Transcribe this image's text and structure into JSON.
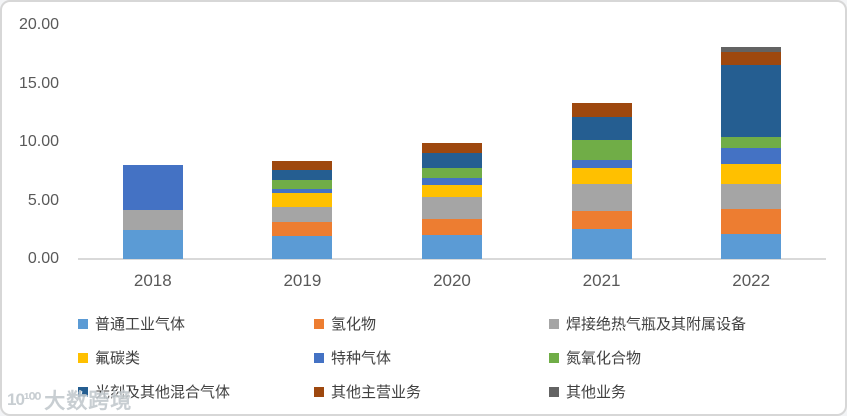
{
  "watermark": {
    "logo": "10¹⁰⁰",
    "text": "大数跨境"
  },
  "chart_data": {
    "type": "bar",
    "stacked": true,
    "title": "",
    "xlabel": "",
    "ylabel": "",
    "categories": [
      "2018",
      "2019",
      "2020",
      "2021",
      "2022"
    ],
    "series": [
      {
        "name": "普通工业气体",
        "color": "#5B9BD5",
        "values": [
          2.45,
          2.0,
          2.05,
          2.55,
          2.15
        ]
      },
      {
        "name": "氢化物",
        "color": "#ED7D31",
        "values": [
          0,
          1.2,
          1.4,
          1.55,
          2.1
        ]
      },
      {
        "name": "焊接绝热气瓶及其附属设备",
        "color": "#A5A5A5",
        "values": [
          1.7,
          1.25,
          1.85,
          2.3,
          2.15
        ]
      },
      {
        "name": "氟碳类",
        "color": "#FFC000",
        "values": [
          0,
          1.15,
          1.0,
          1.4,
          1.7
        ]
      },
      {
        "name": "特种气体",
        "color": "#4472C4",
        "values": [
          3.9,
          0.4,
          0.6,
          0.65,
          1.35
        ]
      },
      {
        "name": "氮氧化合物",
        "color": "#70AD47",
        "values": [
          0,
          0.75,
          0.9,
          1.75,
          1.0
        ]
      },
      {
        "name": "光刻及其他混合气体",
        "color": "#255E91",
        "values": [
          0,
          0.85,
          1.25,
          1.9,
          6.1
        ]
      },
      {
        "name": "其他主营业务",
        "color": "#9E480E",
        "values": [
          0,
          0.75,
          0.85,
          1.25,
          1.15
        ]
      },
      {
        "name": "其他业务",
        "color": "#636363",
        "values": [
          0,
          0,
          0,
          0,
          0.4
        ]
      }
    ],
    "ylim": [
      0,
      20
    ],
    "yticks": [
      {
        "value": 0,
        "label": "0.00"
      },
      {
        "value": 5,
        "label": "5.00"
      },
      {
        "value": 10,
        "label": "10.00"
      },
      {
        "value": 15,
        "label": "15.00"
      },
      {
        "value": 20,
        "label": "20.00"
      }
    ],
    "grid": false,
    "legend_position": "bottom",
    "axis_color": "#d9d9d9",
    "tick_label_color": "#595959"
  }
}
